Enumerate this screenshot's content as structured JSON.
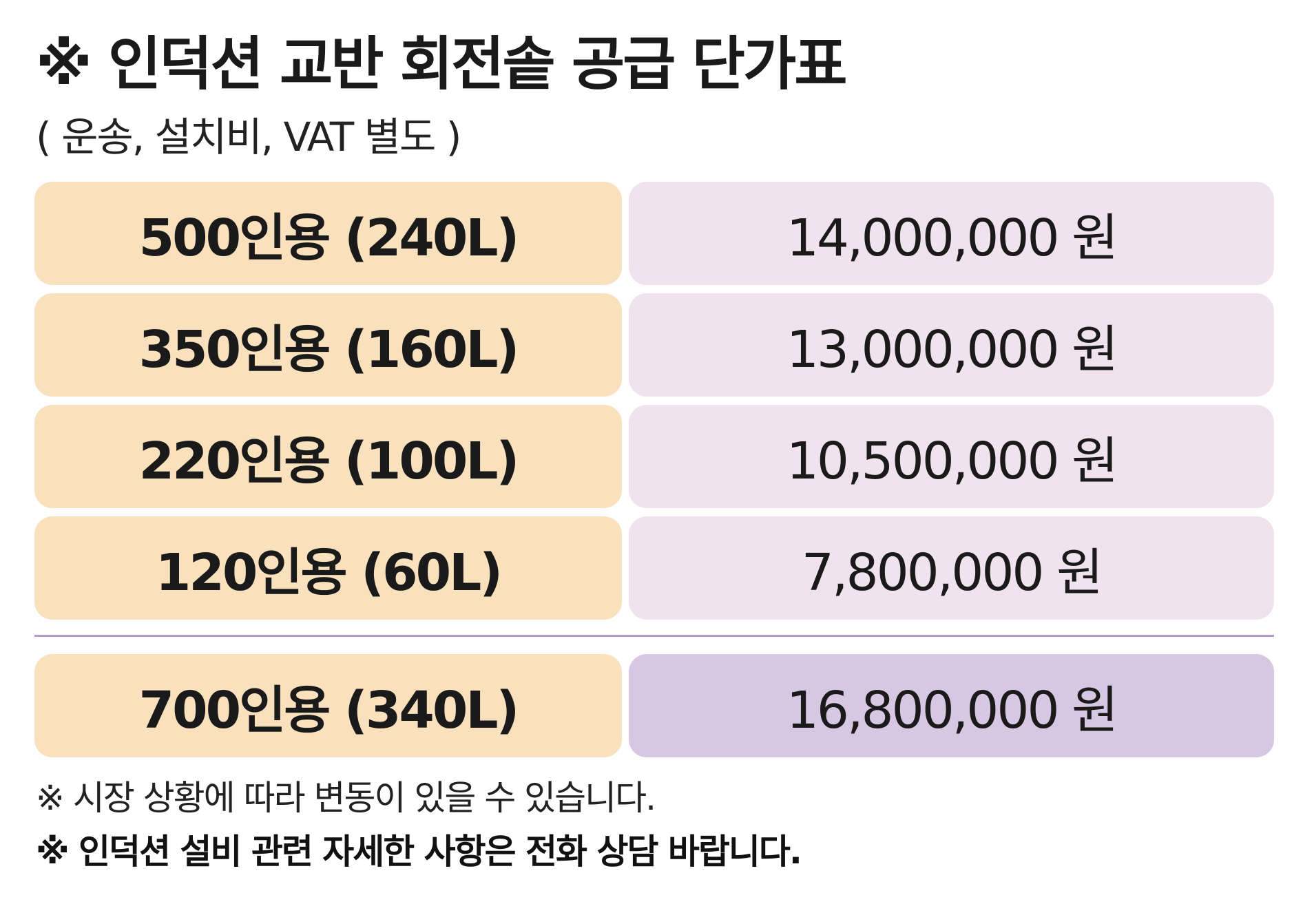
{
  "title": "※ 인덕션 교반 회전솥 공급 단가표",
  "subtitle": "( 운송, 설치비, VAT 별도 )",
  "rows": [
    {
      "label": "500인용 (240L)",
      "price": "14,000,000 원"
    },
    {
      "label": "350인용 (160L)",
      "price": "13,000,000 원"
    },
    {
      "label": "220인용 (100L)",
      "price": "10,500,000 원"
    },
    {
      "label": "120인용 (60L)",
      "price": "7,800,000 원"
    },
    {
      "label": "700인용 (340L)",
      "price": "16,800,000 원"
    }
  ],
  "notes": [
    "※ 시장 상황에 따라 변동이 있을 수 있습니다.",
    "※ 인덕션 설비 관련 자세한 사항은 전화 상담 바랍니다."
  ],
  "colors": {
    "label_bg": "#fae1bd",
    "price_bg": "#f0e3ee",
    "price_highlight_bg": "#d8c7e2",
    "divider": "#b59ccb"
  }
}
